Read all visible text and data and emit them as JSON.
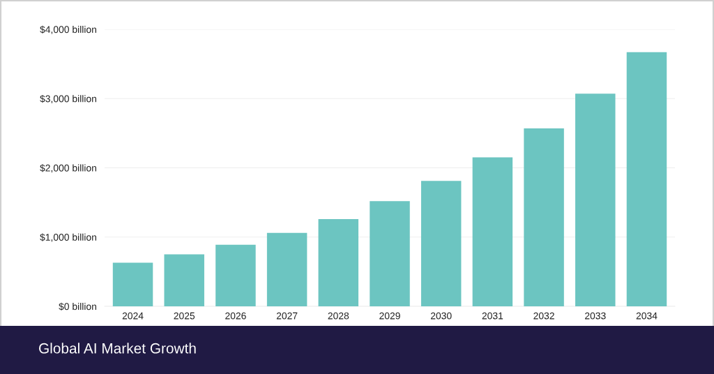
{
  "chart_data": {
    "type": "bar",
    "title": "Global AI Market Growth",
    "categories": [
      "2024",
      "2025",
      "2026",
      "2027",
      "2028",
      "2029",
      "2030",
      "2031",
      "2032",
      "2033",
      "2034"
    ],
    "values": [
      630,
      750,
      890,
      1060,
      1260,
      1520,
      1810,
      2150,
      2570,
      3070,
      3670
    ],
    "color": "#6cc5c1",
    "ylim": [
      0,
      4000
    ],
    "yticks": [
      {
        "value": 0,
        "label": "$0 billion"
      },
      {
        "value": 1000,
        "label": "$1,000 billion"
      },
      {
        "value": 2000,
        "label": "$2,000 billion"
      },
      {
        "value": 3000,
        "label": "$3,000 billion"
      },
      {
        "value": 4000,
        "label": "$4,000 billion"
      }
    ],
    "grid": "y"
  }
}
